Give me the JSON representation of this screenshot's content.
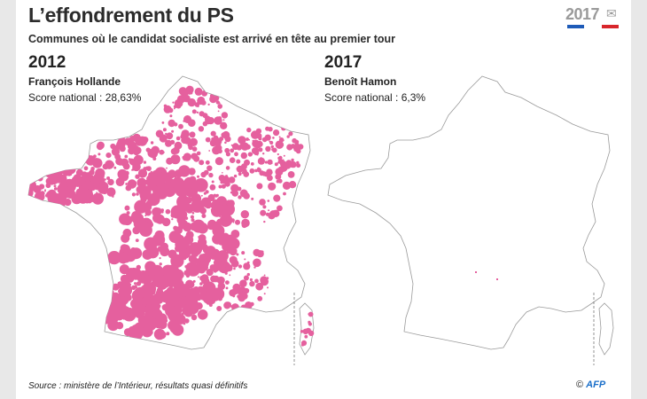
{
  "title": "L’effondrement du PS",
  "subtitle": "Communes où le candidat socialiste est arrivé en tête au premier tour",
  "logo": {
    "text": "2017",
    "icon": "envelope-icon",
    "flag_colors": [
      "#1e5bb8",
      "#ffffff",
      "#d8262b"
    ]
  },
  "left": {
    "year": "2012",
    "candidate": "François Hollande",
    "score": "Score national : 28,63%"
  },
  "right": {
    "year": "2017",
    "candidate": "Benoît Hamon",
    "score": "Score national : 6,3%"
  },
  "colors": {
    "ps": "#e5609e",
    "land": "#ffffff",
    "border": "#9a9a9a"
  },
  "source": "Source : ministère de l’Intérieur, résultats quasi définitifs",
  "credit": {
    "copyright": "©",
    "agency": "AFP"
  }
}
